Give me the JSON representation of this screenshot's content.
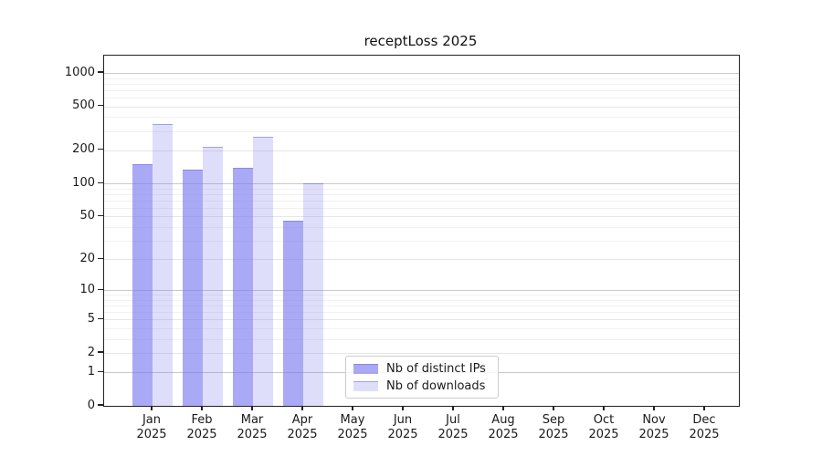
{
  "chart_data": {
    "type": "bar",
    "title": "receptLoss 2025",
    "months": [
      "Jan",
      "Feb",
      "Mar",
      "Apr",
      "May",
      "Jun",
      "Jul",
      "Aug",
      "Sep",
      "Oct",
      "Nov",
      "Dec"
    ],
    "year": "2025",
    "series": [
      {
        "name": "Nb of distinct IPs",
        "color": "rgba(123,123,240,0.65)",
        "values": [
          150,
          135,
          140,
          46,
          0,
          0,
          0,
          0,
          0,
          0,
          0,
          0
        ]
      },
      {
        "name": "Nb of downloads",
        "color": "rgba(123,123,240,0.25)",
        "values": [
          345,
          215,
          265,
          100,
          0,
          0,
          0,
          0,
          0,
          0,
          0,
          0
        ]
      }
    ],
    "y_ticks": [
      1000,
      500,
      200,
      100,
      50,
      20,
      10,
      5,
      2,
      1,
      0
    ],
    "y_major_ticks": [
      1000,
      100,
      10,
      1
    ],
    "y_scale": "log10(value+1)",
    "ylim": [
      0,
      1433
    ],
    "grid": true,
    "legend_position": "inside-bottom-center"
  },
  "colors": {
    "bar_base": "#7b7bf0",
    "grid_major": "#c9c9c9",
    "grid_minor": "#f1f1f1",
    "axis": "#222222"
  }
}
